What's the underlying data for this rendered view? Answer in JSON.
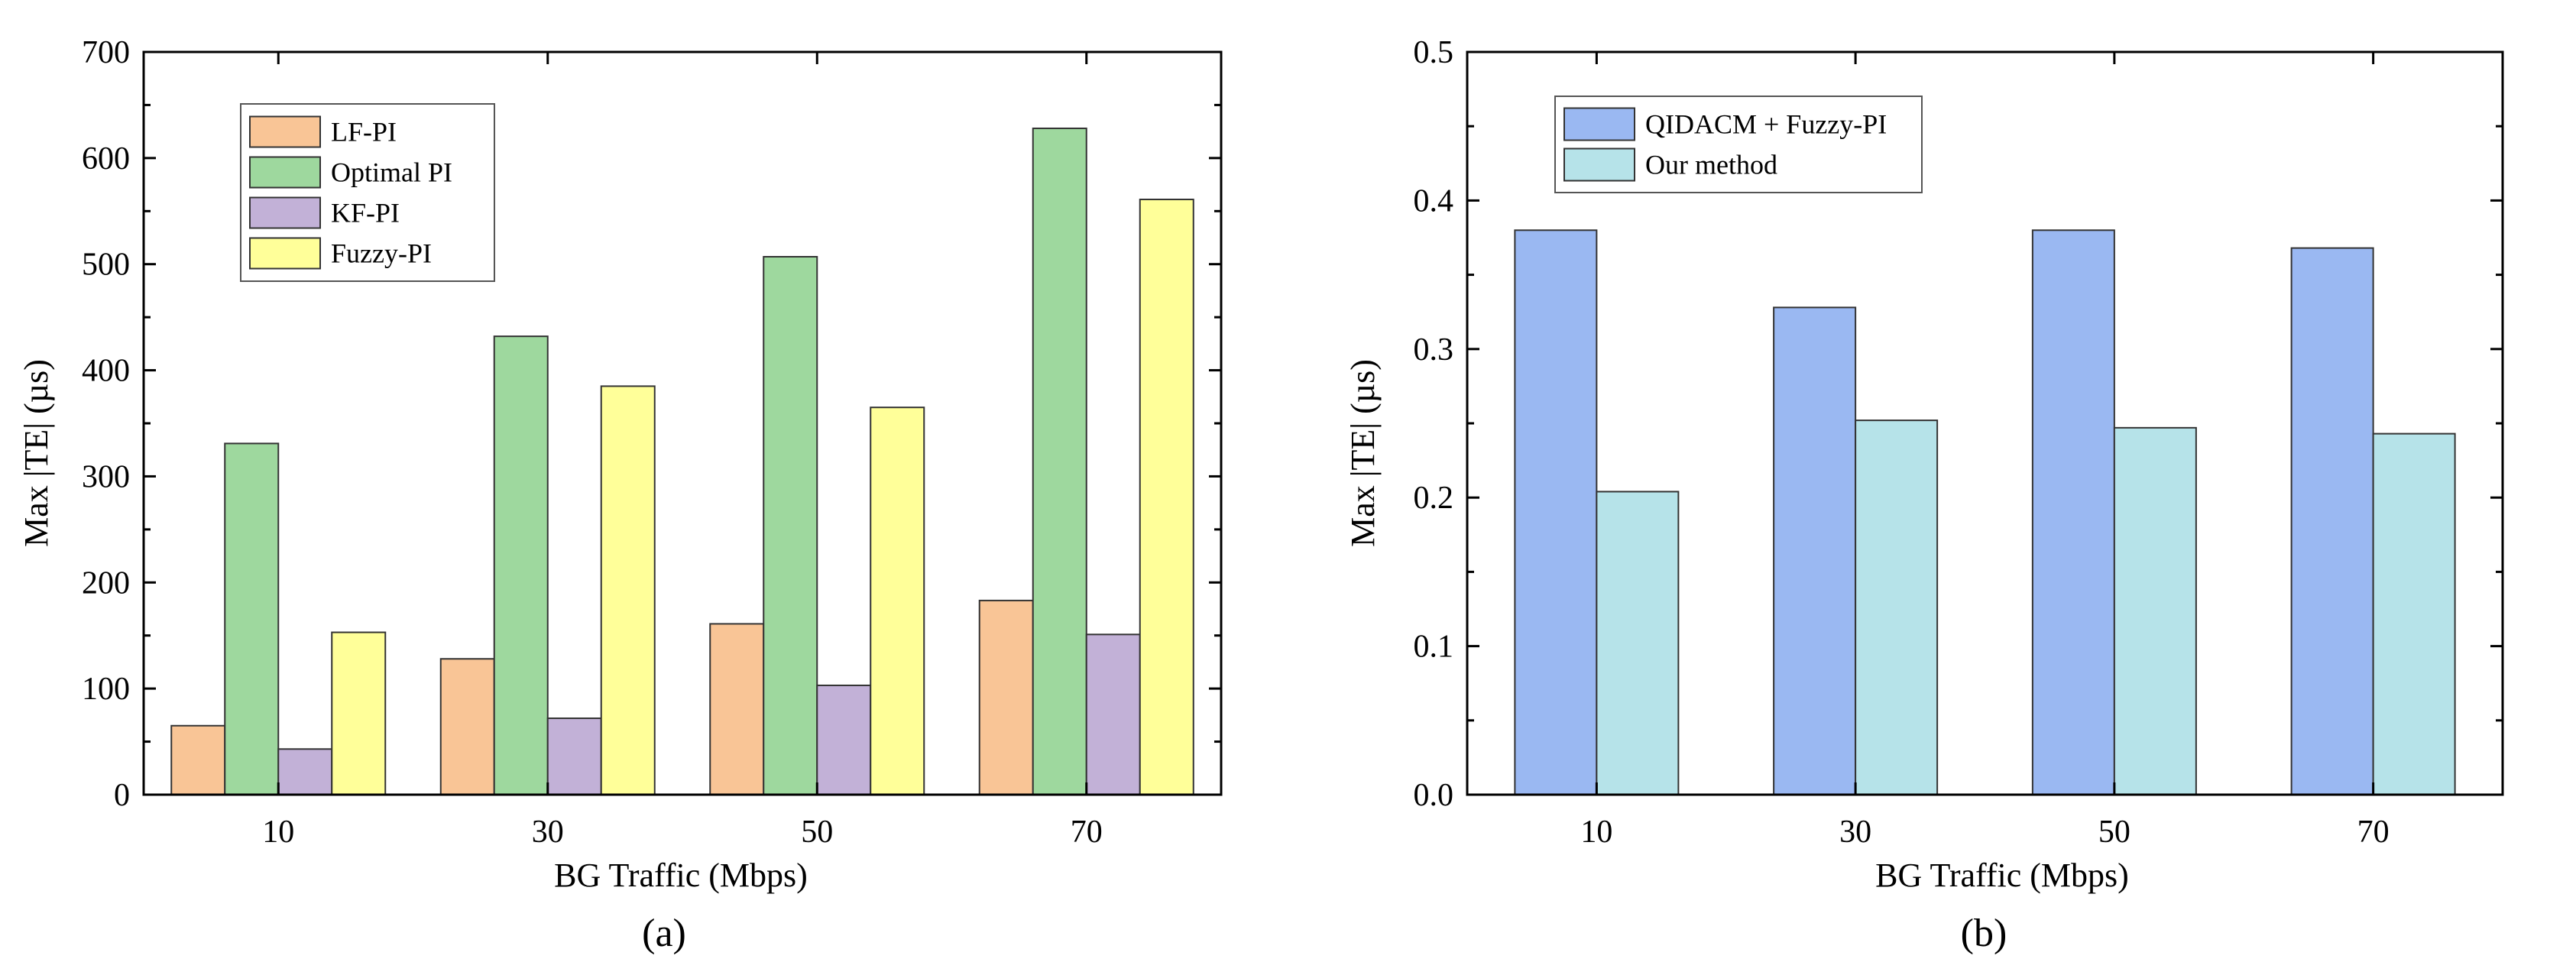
{
  "chart_data": [
    {
      "type": "bar",
      "panel_label": "(a)",
      "xlabel": "BG Traffic (Mbps)",
      "ylabel": "Max |TE| (µs)",
      "categories": [
        "10",
        "30",
        "50",
        "70"
      ],
      "ylim": [
        0,
        700
      ],
      "yticks": [
        "0",
        "100",
        "200",
        "300",
        "400",
        "500",
        "600",
        "700"
      ],
      "grid": false,
      "legend_position": "top-left",
      "series": [
        {
          "name": "LF-PI",
          "color": "#f9c596",
          "values": [
            65,
            128,
            161,
            183
          ]
        },
        {
          "name": "Optimal PI",
          "color": "#9ed89e",
          "values": [
            331,
            432,
            507,
            628
          ]
        },
        {
          "name": "KF-PI",
          "color": "#c2b1d7",
          "values": [
            43,
            72,
            103,
            151
          ]
        },
        {
          "name": "Fuzzy-PI",
          "color": "#ffff99",
          "values": [
            153,
            385,
            365,
            561
          ]
        }
      ]
    },
    {
      "type": "bar",
      "panel_label": "(b)",
      "xlabel": "BG Traffic (Mbps)",
      "ylabel": "Max |TE| (µs)",
      "categories": [
        "10",
        "30",
        "50",
        "70"
      ],
      "ylim": [
        0,
        0.5
      ],
      "yticks": [
        "0.0",
        "0.1",
        "0.2",
        "0.3",
        "0.4",
        "0.5"
      ],
      "grid": false,
      "legend_position": "top-left",
      "series": [
        {
          "name": "QIDACM + Fuzzy-PI",
          "color": "#9ab8f2",
          "values": [
            0.38,
            0.328,
            0.38,
            0.368
          ]
        },
        {
          "name": "Our method",
          "color": "#b6e3e9",
          "values": [
            0.204,
            0.252,
            0.247,
            0.243
          ]
        }
      ]
    }
  ]
}
